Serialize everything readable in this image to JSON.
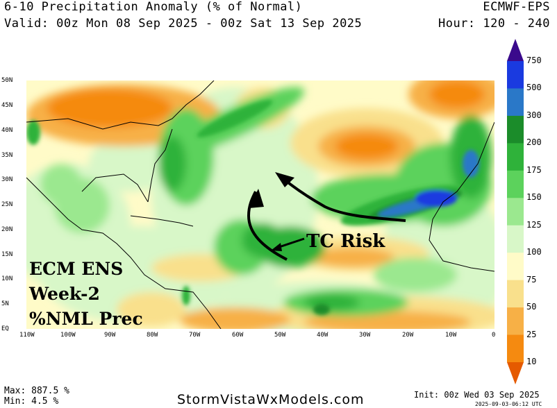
{
  "header": {
    "title": "6-10 Precipitation Anomaly (% of Normal)",
    "valid": "Valid: 00z Mon 08 Sep 2025 - 00z Sat 13 Sep 2025",
    "model": "ECMWF-EPS",
    "hour": "Hour: 120 - 240"
  },
  "map": {
    "lat_labels": [
      "50N",
      "45N",
      "40N",
      "35N",
      "30N",
      "25N",
      "20N",
      "15N",
      "10N",
      "5N",
      "EQ"
    ],
    "lon_labels": [
      "110W",
      "100W",
      "90W",
      "80W",
      "70W",
      "60W",
      "50W",
      "40W",
      "30W",
      "20W",
      "10W",
      "0"
    ],
    "annotations": {
      "product_lines": [
        "ECM ENS",
        "Week-2",
        "%NML Prec"
      ],
      "tc_label": "TC Risk"
    }
  },
  "colorbar": {
    "labels": [
      "750",
      "500",
      "300",
      "200",
      "175",
      "150",
      "125",
      "100",
      "75",
      "50",
      "25",
      "10"
    ],
    "colors": [
      "#3a0a8c",
      "#1a3ae0",
      "#2a78c8",
      "#1b8c2a",
      "#2fb23a",
      "#5cd25c",
      "#9be88f",
      "#d8f7c8",
      "#fffbc8",
      "#f9e08c",
      "#f7b046",
      "#f58a10",
      "#e55a00"
    ]
  },
  "footer": {
    "max": "Max: 887.5 %",
    "min": "Min: 4.5 %",
    "site": "StormVistaWxModels.com",
    "init": "Init: 00z Wed 03 Sep 2025",
    "stamp": "2025-09-03-06:12 UTC"
  }
}
